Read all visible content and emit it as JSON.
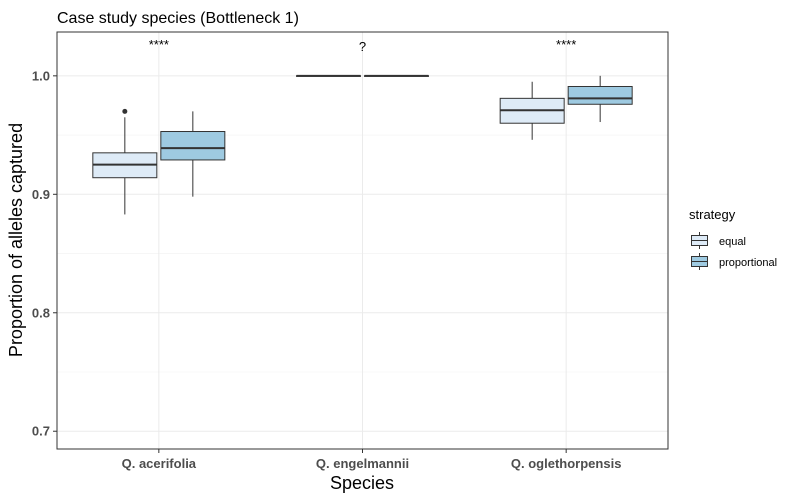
{
  "chart_data": {
    "type": "box",
    "title": "Case study species (Bottleneck 1)",
    "xlabel": "Species",
    "ylabel": "Proportion of alleles captured",
    "ylim": [
      0.685,
      1.037
    ],
    "yticks": [
      0.7,
      0.8,
      0.9,
      1.0
    ],
    "ytick_labels": [
      "0.7",
      "0.8",
      "0.9",
      "1.0"
    ],
    "grid": true,
    "categories": [
      "Q. acerifolia",
      "Q. engelmannii",
      "Q. oglethorpensis"
    ],
    "significance": [
      "****",
      "?",
      "****"
    ],
    "legend": {
      "title": "strategy",
      "position": "right"
    },
    "series": [
      {
        "name": "equal",
        "color": "#deebf7",
        "boxes": [
          {
            "min": 0.883,
            "q1": 0.914,
            "median": 0.925,
            "q3": 0.935,
            "max": 0.965,
            "outliers": [
              0.97
            ]
          },
          {
            "min": 1.0,
            "q1": 1.0,
            "median": 1.0,
            "q3": 1.0,
            "max": 1.0,
            "outliers": []
          },
          {
            "min": 0.946,
            "q1": 0.96,
            "median": 0.971,
            "q3": 0.981,
            "max": 0.995,
            "outliers": []
          }
        ]
      },
      {
        "name": "proportional",
        "color": "#9ecae1",
        "boxes": [
          {
            "min": 0.898,
            "q1": 0.929,
            "median": 0.939,
            "q3": 0.953,
            "max": 0.97,
            "outliers": []
          },
          {
            "min": 1.0,
            "q1": 1.0,
            "median": 1.0,
            "q3": 1.0,
            "max": 1.0,
            "outliers": []
          },
          {
            "min": 0.961,
            "q1": 0.976,
            "median": 0.981,
            "q3": 0.991,
            "max": 1.0,
            "outliers": []
          }
        ]
      }
    ]
  }
}
